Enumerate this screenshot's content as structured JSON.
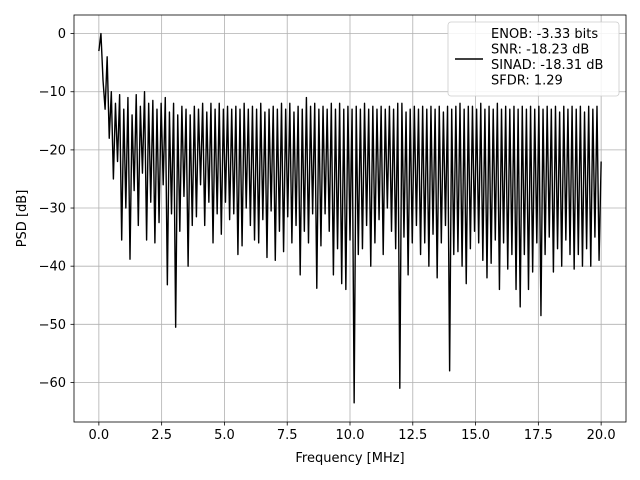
{
  "chart_data": {
    "type": "line",
    "title": "",
    "xlabel": "Frequency [MHz]",
    "ylabel": "PSD [dB]",
    "xlim": [
      -0.99,
      20.99
    ],
    "ylim": [
      -66.8,
      3.2
    ],
    "x_ticks": [
      0.0,
      2.5,
      5.0,
      7.5,
      10.0,
      12.5,
      15.0,
      17.5,
      20.0
    ],
    "x_tick_labels": [
      "0.0",
      "2.5",
      "5.0",
      "7.5",
      "10.0",
      "12.5",
      "15.0",
      "17.5",
      "20.0"
    ],
    "y_ticks": [
      0,
      -10,
      -20,
      -30,
      -40,
      -50,
      -60
    ],
    "y_tick_labels": [
      "0",
      "−10",
      "−20",
      "−30",
      "−40",
      "−50",
      "−60"
    ],
    "grid": true,
    "legend_position": "top-right",
    "series": [
      {
        "name": "ENOB: -3.33 bits\nSNR: -18.23 dB\nSINAD: -18.31 dB\nSFDR: 1.29",
        "color": "#000000",
        "x_range": [
          0,
          20
        ],
        "values": [
          -3.0,
          0.0,
          -8.0,
          -13.0,
          -4.0,
          -18.0,
          -10.0,
          -25.0,
          -12.0,
          -22.0,
          -10.5,
          -35.5,
          -13.0,
          -30.0,
          -11.0,
          -38.8,
          -14.0,
          -27.0,
          -10.5,
          -33.0,
          -12.5,
          -24.0,
          -10.0,
          -35.5,
          -12.0,
          -29.0,
          -11.5,
          -36.0,
          -13.0,
          -32.5,
          -12.0,
          -26.0,
          -11.0,
          -43.2,
          -13.5,
          -31.0,
          -12.0,
          -50.5,
          -14.0,
          -34.0,
          -12.5,
          -28.0,
          -13.0,
          -40.0,
          -14.0,
          -33.0,
          -12.5,
          -31.5,
          -13.0,
          -26.0,
          -12.0,
          -33.0,
          -13.5,
          -29.0,
          -12.0,
          -36.0,
          -13.0,
          -31.0,
          -12.0,
          -34.5,
          -13.0,
          -29.0,
          -12.5,
          -32.0,
          -13.0,
          -31.0,
          -12.5,
          -38.0,
          -13.0,
          -36.5,
          -12.0,
          -30.0,
          -13.0,
          -33.0,
          -12.5,
          -35.5,
          -13.0,
          -36.0,
          -12.0,
          -32.0,
          -13.5,
          -38.5,
          -13.0,
          -30.5,
          -12.5,
          -39.0,
          -13.0,
          -34.0,
          -12.0,
          -37.5,
          -13.0,
          -31.5,
          -12.0,
          -36.0,
          -13.5,
          -33.0,
          -12.5,
          -41.5,
          -13.0,
          -34.0,
          -11.0,
          -36.0,
          -12.5,
          -31.0,
          -12.0,
          -43.8,
          -13.0,
          -36.5,
          -12.5,
          -31.0,
          -13.0,
          -34.0,
          -12.0,
          -41.5,
          -13.0,
          -37.0,
          -12.0,
          -43.0,
          -13.0,
          -44.0,
          -12.5,
          -35.5,
          -13.0,
          -63.5,
          -12.5,
          -38.0,
          -13.0,
          -37.0,
          -12.0,
          -33.0,
          -13.0,
          -40.0,
          -12.5,
          -36.0,
          -13.0,
          -32.0,
          -12.5,
          -38.0,
          -13.0,
          -30.0,
          -12.5,
          -34.0,
          -13.0,
          -37.0,
          -12.0,
          -61.0,
          -12.0,
          -35.0,
          -13.5,
          -41.5,
          -13.0,
          -36.0,
          -12.5,
          -33.0,
          -13.0,
          -38.0,
          -12.5,
          -36.0,
          -13.0,
          -40.0,
          -12.5,
          -34.5,
          -13.0,
          -42.0,
          -12.5,
          -36.0,
          -13.5,
          -33.0,
          -12.5,
          -58.0,
          -13.0,
          -38.0,
          -12.5,
          -37.5,
          -12.0,
          -40.0,
          -13.0,
          -43.0,
          -12.5,
          -37.0,
          -12.5,
          -34.0,
          -13.0,
          -36.0,
          -12.0,
          -39.0,
          -13.0,
          -42.0,
          -12.5,
          -39.5,
          -13.0,
          -35.5,
          -12.0,
          -44.0,
          -13.0,
          -36.0,
          -12.5,
          -40.5,
          -13.0,
          -38.0,
          -12.5,
          -44.0,
          -13.0,
          -47.0,
          -12.5,
          -38.0,
          -13.0,
          -44.0,
          -12.5,
          -41.0,
          -13.0,
          -36.0,
          -12.5,
          -48.5,
          -13.0,
          -38.0,
          -12.5,
          -35.0,
          -13.0,
          -41.0,
          -12.5,
          -37.0,
          -13.5,
          -40.0,
          -12.5,
          -35.5,
          -13.0,
          -38.0,
          -12.5,
          -40.5,
          -13.0,
          -38.0,
          -12.5,
          -40.0,
          -13.5,
          -37.0,
          -12.5,
          -40.0,
          -13.0,
          -35.0,
          -12.5,
          -39.0,
          -22.0
        ]
      }
    ]
  }
}
